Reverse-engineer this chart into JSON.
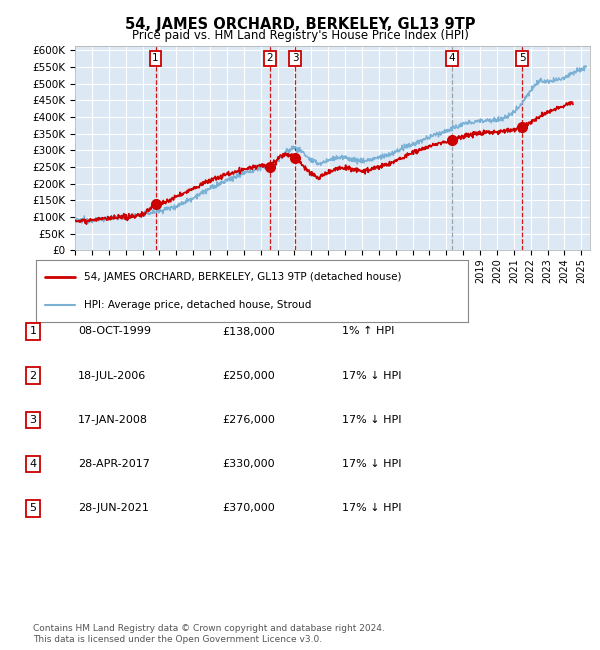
{
  "title": "54, JAMES ORCHARD, BERKELEY, GL13 9TP",
  "subtitle": "Price paid vs. HM Land Registry's House Price Index (HPI)",
  "ylabel_ticks": [
    "£0",
    "£50K",
    "£100K",
    "£150K",
    "£200K",
    "£250K",
    "£300K",
    "£350K",
    "£400K",
    "£450K",
    "£500K",
    "£550K",
    "£600K"
  ],
  "ytick_values": [
    0,
    50000,
    100000,
    150000,
    200000,
    250000,
    300000,
    350000,
    400000,
    450000,
    500000,
    550000,
    600000
  ],
  "ylim": [
    0,
    615000
  ],
  "xlim_start": 1995.0,
  "xlim_end": 2025.5,
  "sales": [
    {
      "year": 1999.77,
      "price": 138000,
      "label": "1"
    },
    {
      "year": 2006.54,
      "price": 250000,
      "label": "2"
    },
    {
      "year": 2008.04,
      "price": 276000,
      "label": "3"
    },
    {
      "year": 2017.32,
      "price": 330000,
      "label": "4"
    },
    {
      "year": 2021.49,
      "price": 370000,
      "label": "5"
    }
  ],
  "legend_entries": [
    {
      "label": "54, JAMES ORCHARD, BERKELEY, GL13 9TP (detached house)",
      "color": "#cc0000",
      "lw": 2.0
    },
    {
      "label": "HPI: Average price, detached house, Stroud",
      "color": "#7ab0d4",
      "lw": 1.5
    }
  ],
  "table_rows": [
    {
      "num": "1",
      "date": "08-OCT-1999",
      "price": "£138,000",
      "hpi": "1% ↑ HPI"
    },
    {
      "num": "2",
      "date": "18-JUL-2006",
      "price": "£250,000",
      "hpi": "17% ↓ HPI"
    },
    {
      "num": "3",
      "date": "17-JAN-2008",
      "price": "£276,000",
      "hpi": "17% ↓ HPI"
    },
    {
      "num": "4",
      "date": "28-APR-2017",
      "price": "£330,000",
      "hpi": "17% ↓ HPI"
    },
    {
      "num": "5",
      "date": "28-JUN-2021",
      "price": "£370,000",
      "hpi": "17% ↓ HPI"
    }
  ],
  "footer": "Contains HM Land Registry data © Crown copyright and database right 2024.\nThis data is licensed under the Open Government Licence v3.0.",
  "plot_bg": "#dce9f5",
  "grid_color": "#ffffff",
  "sale_line_color": "#cc0000",
  "hpi_line_color": "#7ab0d4",
  "marker_color": "#cc0000",
  "vline_color_red": "#cc0000",
  "vline_color_gray": "#999999"
}
